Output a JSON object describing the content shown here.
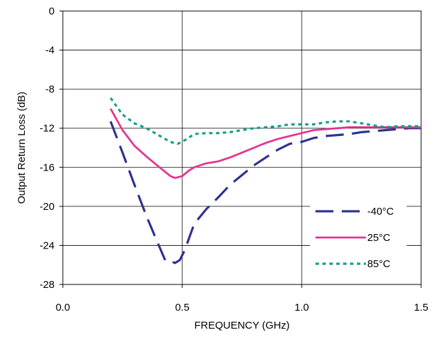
{
  "chart_data": {
    "type": "line",
    "xlabel": "FREQUENCY (GHz)",
    "ylabel": "Output Return Loss (dB)",
    "xlim": [
      0.0,
      1.5
    ],
    "ylim": [
      -28,
      0
    ],
    "x_ticks": [
      "0.0",
      "0.5",
      "1.0",
      "1.5"
    ],
    "y_ticks": [
      "0",
      "-4",
      "-8",
      "-12",
      "-16",
      "-20",
      "-24",
      "-28"
    ],
    "grid": true,
    "legend_position": "bottom-right",
    "series": [
      {
        "name": "-40°C",
        "color": "#2e3192",
        "style": "dashed",
        "x": [
          0.2,
          0.25,
          0.3,
          0.35,
          0.4,
          0.43,
          0.45,
          0.47,
          0.49,
          0.51,
          0.55,
          0.6,
          0.65,
          0.7,
          0.75,
          0.8,
          0.85,
          0.9,
          0.95,
          1.0,
          1.05,
          1.1,
          1.15,
          1.2,
          1.25,
          1.3,
          1.35,
          1.4,
          1.45,
          1.5
        ],
        "values": [
          -11.3,
          -14.5,
          -17.8,
          -21.0,
          -23.9,
          -25.6,
          -25.6,
          -25.8,
          -25.5,
          -24.5,
          -21.8,
          -20.3,
          -19.1,
          -17.8,
          -16.8,
          -15.8,
          -15.0,
          -14.2,
          -13.6,
          -13.4,
          -13.0,
          -12.8,
          -12.7,
          -12.6,
          -12.4,
          -12.3,
          -12.2,
          -12.1,
          -12.0,
          -12.0
        ]
      },
      {
        "name": "25°C",
        "color": "#e5338e",
        "style": "solid",
        "x": [
          0.2,
          0.25,
          0.3,
          0.35,
          0.4,
          0.45,
          0.47,
          0.5,
          0.53,
          0.55,
          0.6,
          0.65,
          0.7,
          0.75,
          0.8,
          0.85,
          0.9,
          0.95,
          1.0,
          1.05,
          1.1,
          1.15,
          1.2,
          1.25,
          1.3,
          1.35,
          1.4,
          1.45,
          1.5
        ],
        "values": [
          -10.0,
          -12.2,
          -13.8,
          -14.9,
          -15.9,
          -16.9,
          -17.1,
          -16.9,
          -16.3,
          -16.0,
          -15.6,
          -15.4,
          -15.0,
          -14.5,
          -14.0,
          -13.5,
          -13.1,
          -12.8,
          -12.5,
          -12.2,
          -12.1,
          -12.0,
          -11.9,
          -11.9,
          -11.9,
          -11.9,
          -11.9,
          -11.9,
          -11.9
        ]
      },
      {
        "name": "85°C",
        "color": "#16a085",
        "style": "dotted",
        "x": [
          0.2,
          0.25,
          0.3,
          0.35,
          0.4,
          0.45,
          0.48,
          0.5,
          0.55,
          0.6,
          0.65,
          0.7,
          0.75,
          0.8,
          0.85,
          0.9,
          0.95,
          1.0,
          1.05,
          1.1,
          1.15,
          1.2,
          1.25,
          1.3,
          1.35,
          1.4,
          1.45,
          1.5
        ],
        "values": [
          -8.9,
          -10.6,
          -11.5,
          -12.0,
          -12.7,
          -13.4,
          -13.6,
          -13.4,
          -12.6,
          -12.5,
          -12.5,
          -12.4,
          -12.2,
          -12.0,
          -11.9,
          -11.8,
          -11.6,
          -11.6,
          -11.6,
          -11.4,
          -11.3,
          -11.3,
          -11.5,
          -11.7,
          -11.9,
          -11.8,
          -11.8,
          -11.8
        ]
      }
    ]
  }
}
